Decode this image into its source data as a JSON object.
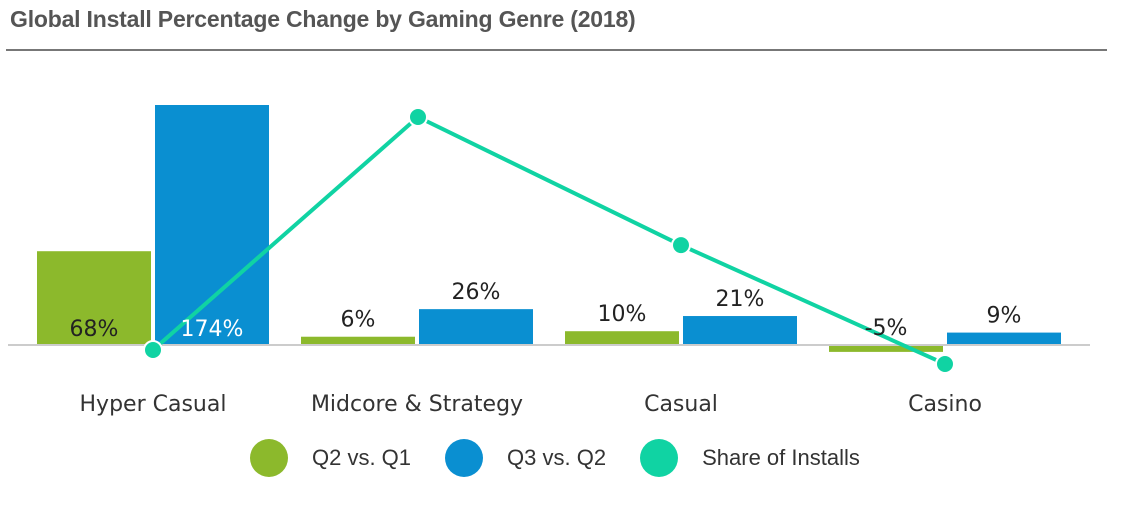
{
  "chart_data": {
    "type": "bar",
    "title": "Global Install Percentage Change by Gaming Genre (2018)",
    "categories": [
      "Hyper Casual",
      "Midcore & Strategy",
      "Casual",
      "Casino"
    ],
    "series": [
      {
        "name": "Q2 vs. Q1",
        "type": "bar",
        "color": "#8cb92c",
        "values": [
          68,
          6,
          10,
          -5
        ],
        "labels": [
          "68%",
          "6%",
          "10%",
          "-5%"
        ]
      },
      {
        "name": "Q3 vs. Q2",
        "type": "bar",
        "color": "#0a8fd1",
        "values": [
          174,
          26,
          21,
          9
        ],
        "labels": [
          "174%",
          "26%",
          "21%",
          "9%"
        ]
      },
      {
        "name": "Share of Installs",
        "type": "line",
        "color": "#10d3a3",
        "values": [
          0,
          100,
          45,
          -6
        ]
      }
    ],
    "ylim": [
      -10,
      180
    ],
    "grid": false,
    "legend_position": "bottom"
  }
}
